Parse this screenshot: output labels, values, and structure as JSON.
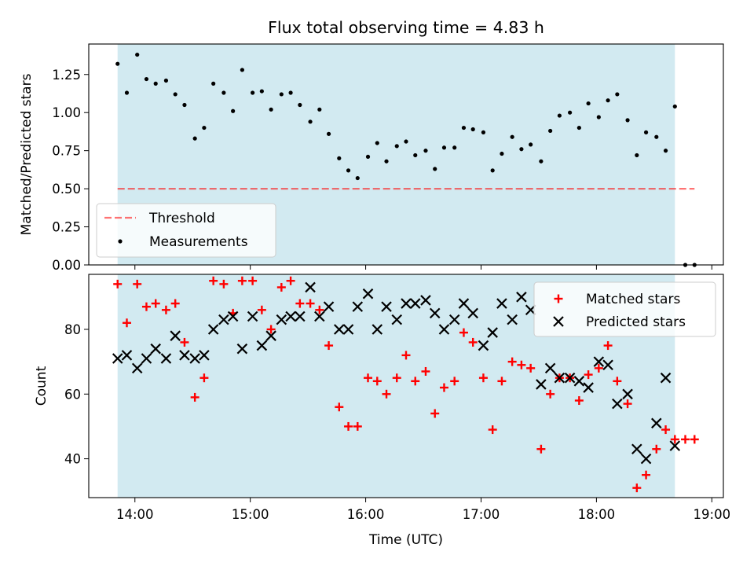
{
  "figure": {
    "title": "Flux total observing time = 4.83 h"
  },
  "chart_data": [
    {
      "type": "scatter",
      "title": "Flux total observing time = 4.83 h",
      "xlabel": "",
      "ylabel": "Matched/Predicted stars",
      "x_unit": "hours UTC",
      "xlim": [
        13.6,
        19.1
      ],
      "ylim": [
        0.0,
        1.45
      ],
      "yticks": [
        0.0,
        0.25,
        0.5,
        0.75,
        1.0,
        1.25
      ],
      "ytick_labels": [
        "0.00",
        "0.25",
        "0.50",
        "0.75",
        "1.00",
        "1.25"
      ],
      "xtick_labels_visible": false,
      "shaded_span": {
        "x": [
          13.85,
          18.68
        ],
        "color": "#add8e6"
      },
      "threshold": {
        "name": "Threshold",
        "y": 0.5,
        "x": [
          13.85,
          18.85
        ],
        "color": "#ff0000",
        "style": "dashed"
      },
      "series": [
        {
          "name": "Measurements",
          "color": "#000000",
          "marker": "dot",
          "x": [
            13.85,
            13.93,
            14.02,
            14.1,
            14.18,
            14.27,
            14.35,
            14.43,
            14.52,
            14.6,
            14.68,
            14.77,
            14.85,
            14.93,
            15.02,
            15.1,
            15.18,
            15.27,
            15.35,
            15.43,
            15.52,
            15.6,
            15.68,
            15.77,
            15.85,
            15.93,
            16.02,
            16.1,
            16.18,
            16.27,
            16.35,
            16.43,
            16.52,
            16.6,
            16.68,
            16.77,
            16.85,
            16.93,
            17.02,
            17.1,
            17.18,
            17.27,
            17.35,
            17.43,
            17.52,
            17.6,
            17.68,
            17.77,
            17.85,
            17.93,
            18.02,
            18.1,
            18.18,
            18.27,
            18.35,
            18.43,
            18.52,
            18.6,
            18.68,
            18.77,
            18.85
          ],
          "y": [
            1.32,
            1.13,
            1.38,
            1.22,
            1.19,
            1.21,
            1.12,
            1.05,
            0.83,
            0.9,
            1.19,
            1.13,
            1.01,
            1.28,
            1.13,
            1.14,
            1.02,
            1.12,
            1.13,
            1.05,
            0.94,
            1.02,
            0.86,
            0.7,
            0.62,
            0.57,
            0.71,
            0.8,
            0.68,
            0.78,
            0.81,
            0.72,
            0.75,
            0.63,
            0.77,
            0.77,
            0.9,
            0.89,
            0.87,
            0.62,
            0.73,
            0.84,
            0.76,
            0.79,
            0.68,
            0.88,
            0.98,
            1.0,
            0.9,
            1.06,
            0.97,
            1.08,
            1.12,
            0.95,
            0.72,
            0.87,
            0.84,
            0.75,
            1.04,
            0.0,
            0.0
          ]
        }
      ],
      "legend": {
        "placement": "lower-left",
        "entries": [
          "Threshold",
          "Measurements"
        ]
      }
    },
    {
      "type": "scatter",
      "title": "",
      "xlabel": "Time (UTC)",
      "ylabel": "Count",
      "x_unit": "hours UTC",
      "xlim": [
        13.6,
        19.1
      ],
      "ylim": [
        28,
        97
      ],
      "yticks": [
        40,
        60,
        80
      ],
      "ytick_labels": [
        "40",
        "60",
        "80"
      ],
      "xticks": [
        14,
        15,
        16,
        17,
        18,
        19
      ],
      "xtick_labels": [
        "14:00",
        "15:00",
        "16:00",
        "17:00",
        "18:00",
        "19:00"
      ],
      "shaded_span": {
        "x": [
          13.85,
          18.68
        ],
        "color": "#add8e6"
      },
      "series": [
        {
          "name": "Matched stars",
          "color": "#ff0000",
          "marker": "plus",
          "x": [
            13.85,
            13.93,
            14.02,
            14.1,
            14.18,
            14.27,
            14.35,
            14.43,
            14.52,
            14.6,
            14.68,
            14.77,
            14.85,
            14.93,
            15.02,
            15.1,
            15.18,
            15.27,
            15.35,
            15.43,
            15.52,
            15.6,
            15.68,
            15.77,
            15.85,
            15.93,
            16.02,
            16.1,
            16.18,
            16.27,
            16.35,
            16.43,
            16.52,
            16.6,
            16.68,
            16.77,
            16.85,
            16.93,
            17.02,
            17.1,
            17.18,
            17.27,
            17.35,
            17.43,
            17.52,
            17.6,
            17.68,
            17.77,
            17.85,
            17.93,
            18.02,
            18.1,
            18.18,
            18.27,
            18.35,
            18.43,
            18.52,
            18.6,
            18.68,
            18.77,
            18.85
          ],
          "y": [
            94,
            82,
            94,
            87,
            88,
            86,
            88,
            76,
            59,
            65,
            95,
            94,
            85,
            95,
            95,
            86,
            80,
            93,
            95,
            88,
            88,
            86,
            75,
            56,
            50,
            50,
            65,
            64,
            60,
            65,
            72,
            64,
            67,
            54,
            62,
            64,
            79,
            76,
            65,
            49,
            64,
            70,
            69,
            68,
            43,
            60,
            65,
            65,
            58,
            66,
            68,
            75,
            64,
            57,
            31,
            35,
            43,
            49,
            46,
            46,
            46
          ]
        },
        {
          "name": "Predicted stars",
          "color": "#000000",
          "marker": "x",
          "x": [
            13.85,
            13.93,
            14.02,
            14.1,
            14.18,
            14.27,
            14.35,
            14.43,
            14.52,
            14.6,
            14.68,
            14.77,
            14.85,
            14.93,
            15.02,
            15.1,
            15.18,
            15.27,
            15.35,
            15.43,
            15.52,
            15.6,
            15.68,
            15.77,
            15.85,
            15.93,
            16.02,
            16.1,
            16.18,
            16.27,
            16.35,
            16.43,
            16.52,
            16.6,
            16.68,
            16.77,
            16.85,
            16.93,
            17.02,
            17.1,
            17.18,
            17.27,
            17.35,
            17.43,
            17.52,
            17.6,
            17.68,
            17.77,
            17.85,
            17.93,
            18.02,
            18.1,
            18.18,
            18.27,
            18.35,
            18.43,
            18.52,
            18.6,
            18.68
          ],
          "y": [
            71,
            72,
            68,
            71,
            74,
            71,
            78,
            72,
            71,
            72,
            80,
            83,
            84,
            74,
            84,
            75,
            78,
            83,
            84,
            84,
            93,
            84,
            87,
            80,
            80,
            87,
            91,
            80,
            87,
            83,
            88,
            88,
            89,
            85,
            80,
            83,
            88,
            85,
            75,
            79,
            88,
            83,
            90,
            86,
            63,
            68,
            65,
            65,
            64,
            62,
            70,
            69,
            57,
            60,
            43,
            40,
            51,
            65,
            44
          ]
        }
      ],
      "legend": {
        "placement": "upper-right",
        "entries": [
          "Matched stars",
          "Predicted stars"
        ]
      }
    }
  ]
}
